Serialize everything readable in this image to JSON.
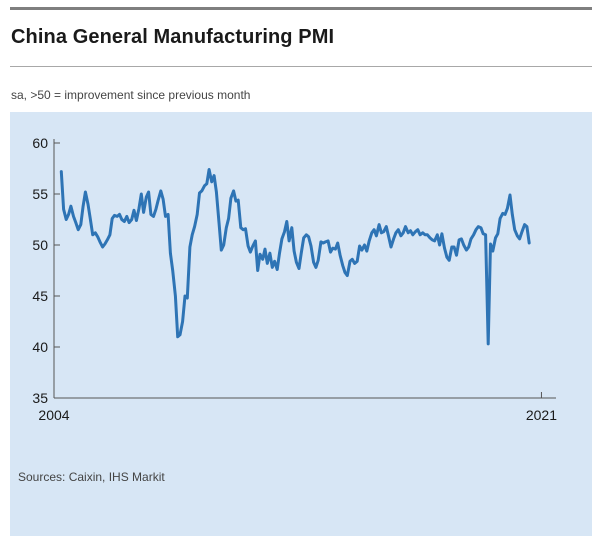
{
  "header": {
    "title": "China General Manufacturing PMI",
    "subtitle": "sa, >50 = improvement since previous month"
  },
  "footer": {
    "source": "Sources: Caixin, IHS Markit"
  },
  "colors": {
    "line": "#2e74b5",
    "panel": "#d7e6f5",
    "axis": "#555555"
  },
  "chart_data": {
    "type": "line",
    "title": "China General Manufacturing PMI",
    "subtitle": "sa, >50 = improvement since previous month",
    "xlabel": "",
    "ylabel": "",
    "ylim": [
      35,
      60
    ],
    "yticks": [
      60,
      55,
      50,
      45,
      40,
      35
    ],
    "xlim": [
      2004.25,
      2021.5
    ],
    "xticks": [
      {
        "value": 2004.25,
        "label": "2004"
      },
      {
        "value": 2021.0,
        "label": "2021"
      }
    ],
    "grid": false,
    "legend": "none",
    "series": [
      {
        "color": "#2e74b5",
        "points": [
          [
            2004.5,
            57.2
          ],
          [
            2004.58,
            53.5
          ],
          [
            2004.67,
            52.5
          ],
          [
            2004.75,
            53.0
          ],
          [
            2004.83,
            53.8
          ],
          [
            2004.92,
            52.8
          ],
          [
            2005.0,
            52.2
          ],
          [
            2005.08,
            51.5
          ],
          [
            2005.17,
            52.0
          ],
          [
            2005.25,
            53.8
          ],
          [
            2005.33,
            55.2
          ],
          [
            2005.42,
            54.0
          ],
          [
            2005.5,
            52.5
          ],
          [
            2005.58,
            51.0
          ],
          [
            2005.67,
            51.2
          ],
          [
            2005.75,
            50.8
          ],
          [
            2005.83,
            50.3
          ],
          [
            2005.92,
            49.8
          ],
          [
            2006.0,
            50.1
          ],
          [
            2006.08,
            50.5
          ],
          [
            2006.17,
            51.0
          ],
          [
            2006.25,
            52.6
          ],
          [
            2006.33,
            52.9
          ],
          [
            2006.42,
            52.8
          ],
          [
            2006.5,
            53.0
          ],
          [
            2006.58,
            52.5
          ],
          [
            2006.67,
            52.3
          ],
          [
            2006.75,
            52.8
          ],
          [
            2006.83,
            52.2
          ],
          [
            2006.92,
            52.5
          ],
          [
            2007.0,
            53.4
          ],
          [
            2007.08,
            52.4
          ],
          [
            2007.17,
            53.6
          ],
          [
            2007.25,
            55.0
          ],
          [
            2007.33,
            53.2
          ],
          [
            2007.42,
            54.7
          ],
          [
            2007.5,
            55.2
          ],
          [
            2007.58,
            53.0
          ],
          [
            2007.67,
            52.8
          ],
          [
            2007.75,
            53.5
          ],
          [
            2007.83,
            54.4
          ],
          [
            2007.92,
            55.3
          ],
          [
            2008.0,
            54.5
          ],
          [
            2008.08,
            52.8
          ],
          [
            2008.17,
            53.0
          ],
          [
            2008.25,
            49.2
          ],
          [
            2008.33,
            47.5
          ],
          [
            2008.42,
            45.0
          ],
          [
            2008.5,
            41.0
          ],
          [
            2008.58,
            41.2
          ],
          [
            2008.67,
            42.5
          ],
          [
            2008.75,
            45.0
          ],
          [
            2008.83,
            44.8
          ],
          [
            2008.92,
            49.8
          ],
          [
            2009.0,
            51.0
          ],
          [
            2009.08,
            51.8
          ],
          [
            2009.17,
            53.0
          ],
          [
            2009.25,
            55.1
          ],
          [
            2009.33,
            55.3
          ],
          [
            2009.42,
            55.8
          ],
          [
            2009.5,
            56.0
          ],
          [
            2009.58,
            57.4
          ],
          [
            2009.67,
            56.2
          ],
          [
            2009.75,
            56.8
          ],
          [
            2009.83,
            55.2
          ],
          [
            2009.92,
            52.2
          ],
          [
            2010.0,
            49.5
          ],
          [
            2010.08,
            50.0
          ],
          [
            2010.17,
            51.7
          ],
          [
            2010.25,
            52.6
          ],
          [
            2010.33,
            54.6
          ],
          [
            2010.42,
            55.3
          ],
          [
            2010.5,
            54.3
          ],
          [
            2010.58,
            54.4
          ],
          [
            2010.67,
            51.7
          ],
          [
            2010.75,
            51.5
          ],
          [
            2010.83,
            51.6
          ],
          [
            2010.92,
            49.9
          ],
          [
            2011.0,
            49.3
          ],
          [
            2011.08,
            49.9
          ],
          [
            2011.17,
            50.4
          ],
          [
            2011.25,
            47.5
          ],
          [
            2011.33,
            49.1
          ],
          [
            2011.42,
            48.6
          ],
          [
            2011.5,
            49.6
          ],
          [
            2011.58,
            48.2
          ],
          [
            2011.67,
            49.2
          ],
          [
            2011.75,
            47.8
          ],
          [
            2011.83,
            48.4
          ],
          [
            2011.92,
            47.6
          ],
          [
            2012.0,
            49.2
          ],
          [
            2012.08,
            50.6
          ],
          [
            2012.17,
            51.3
          ],
          [
            2012.25,
            52.3
          ],
          [
            2012.33,
            50.4
          ],
          [
            2012.42,
            51.7
          ],
          [
            2012.5,
            49.4
          ],
          [
            2012.58,
            48.3
          ],
          [
            2012.67,
            47.7
          ],
          [
            2012.75,
            49.3
          ],
          [
            2012.83,
            50.7
          ],
          [
            2012.92,
            51.0
          ],
          [
            2013.0,
            50.8
          ],
          [
            2013.08,
            49.9
          ],
          [
            2013.17,
            48.3
          ],
          [
            2013.25,
            47.8
          ],
          [
            2013.33,
            48.5
          ],
          [
            2013.42,
            50.3
          ],
          [
            2013.5,
            50.2
          ],
          [
            2013.58,
            50.3
          ],
          [
            2013.67,
            50.4
          ],
          [
            2013.75,
            49.3
          ],
          [
            2013.83,
            49.7
          ],
          [
            2013.92,
            49.6
          ],
          [
            2014.0,
            50.2
          ],
          [
            2014.08,
            49.0
          ],
          [
            2014.17,
            48.0
          ],
          [
            2014.25,
            47.3
          ],
          [
            2014.33,
            47.0
          ],
          [
            2014.42,
            48.4
          ],
          [
            2014.5,
            48.6
          ],
          [
            2014.58,
            48.2
          ],
          [
            2014.67,
            48.4
          ],
          [
            2014.75,
            49.9
          ],
          [
            2014.83,
            49.5
          ],
          [
            2014.92,
            50.0
          ],
          [
            2015.0,
            49.4
          ],
          [
            2015.08,
            50.4
          ],
          [
            2015.17,
            51.2
          ],
          [
            2015.25,
            51.5
          ],
          [
            2015.33,
            50.9
          ],
          [
            2015.42,
            52.0
          ],
          [
            2015.5,
            51.2
          ],
          [
            2015.58,
            51.3
          ],
          [
            2015.67,
            51.8
          ],
          [
            2015.75,
            50.8
          ],
          [
            2015.83,
            49.8
          ],
          [
            2015.92,
            50.6
          ],
          [
            2016.0,
            51.2
          ],
          [
            2016.08,
            51.5
          ],
          [
            2016.17,
            50.9
          ],
          [
            2016.25,
            51.2
          ],
          [
            2016.33,
            51.8
          ],
          [
            2016.42,
            51.2
          ],
          [
            2016.5,
            51.4
          ],
          [
            2016.58,
            51.0
          ],
          [
            2016.67,
            51.3
          ],
          [
            2016.75,
            51.5
          ],
          [
            2016.83,
            51.0
          ],
          [
            2016.92,
            51.2
          ],
          [
            2017.0,
            51.0
          ],
          [
            2017.08,
            51.0
          ],
          [
            2017.17,
            50.7
          ],
          [
            2017.25,
            50.5
          ],
          [
            2017.33,
            50.4
          ],
          [
            2017.42,
            51.0
          ],
          [
            2017.5,
            50.0
          ],
          [
            2017.58,
            51.1
          ],
          [
            2017.67,
            49.7
          ],
          [
            2017.75,
            48.8
          ],
          [
            2017.83,
            48.5
          ],
          [
            2017.92,
            49.8
          ],
          [
            2018.0,
            49.8
          ],
          [
            2018.08,
            49.0
          ],
          [
            2018.17,
            50.5
          ],
          [
            2018.25,
            50.6
          ],
          [
            2018.33,
            50.0
          ],
          [
            2018.42,
            49.5
          ],
          [
            2018.5,
            49.8
          ],
          [
            2018.58,
            50.6
          ],
          [
            2018.67,
            51.0
          ],
          [
            2018.75,
            51.5
          ],
          [
            2018.83,
            51.8
          ],
          [
            2018.92,
            51.7
          ],
          [
            2019.0,
            51.1
          ],
          [
            2019.08,
            51.0
          ],
          [
            2019.17,
            40.3
          ],
          [
            2019.25,
            50.1
          ],
          [
            2019.33,
            49.4
          ],
          [
            2019.42,
            50.7
          ],
          [
            2019.5,
            51.1
          ],
          [
            2019.58,
            52.6
          ],
          [
            2019.67,
            53.1
          ],
          [
            2019.75,
            53.0
          ],
          [
            2019.83,
            53.6
          ],
          [
            2019.92,
            54.9
          ],
          [
            2020.0,
            53.0
          ],
          [
            2020.08,
            51.5
          ],
          [
            2020.17,
            50.9
          ],
          [
            2020.25,
            50.6
          ],
          [
            2020.33,
            51.3
          ],
          [
            2020.42,
            52.0
          ],
          [
            2020.5,
            51.8
          ],
          [
            2020.58,
            50.2
          ]
        ]
      }
    ]
  }
}
